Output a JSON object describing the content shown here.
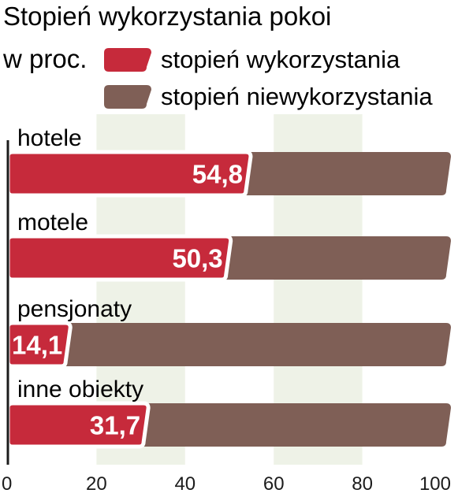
{
  "title": "Stopień wykorzystania pokoi",
  "unit": "w proc.",
  "colors": {
    "used": "#c62a3b",
    "unused": "#7f5f56",
    "band": "#eef2e7",
    "axis": "#1c1c1c"
  },
  "legend": [
    {
      "label": "stopień wykorzystania",
      "color": "#c62a3b"
    },
    {
      "label": "stopień niewykorzystania",
      "color": "#7f5f56"
    }
  ],
  "chart_data": {
    "type": "bar",
    "orientation": "horizontal",
    "stacked": true,
    "categories": [
      "hotele",
      "motele",
      "pensjonaty",
      "inne obiekty"
    ],
    "series": [
      {
        "name": "stopień wykorzystania",
        "values": [
          54.8,
          50.3,
          14.1,
          31.7
        ]
      },
      {
        "name": "stopień niewykorzystania",
        "values": [
          45.2,
          49.7,
          85.9,
          68.3
        ]
      }
    ],
    "value_labels": [
      "54,8",
      "50,3",
      "14,1",
      "31,7"
    ],
    "xlim": [
      0,
      100
    ],
    "xticks": [
      0,
      20,
      40,
      60,
      80,
      100
    ],
    "xtick_labels": [
      "0",
      "20",
      "40",
      "60",
      "80",
      "100"
    ],
    "legend_position": "top-right",
    "grid": true
  }
}
